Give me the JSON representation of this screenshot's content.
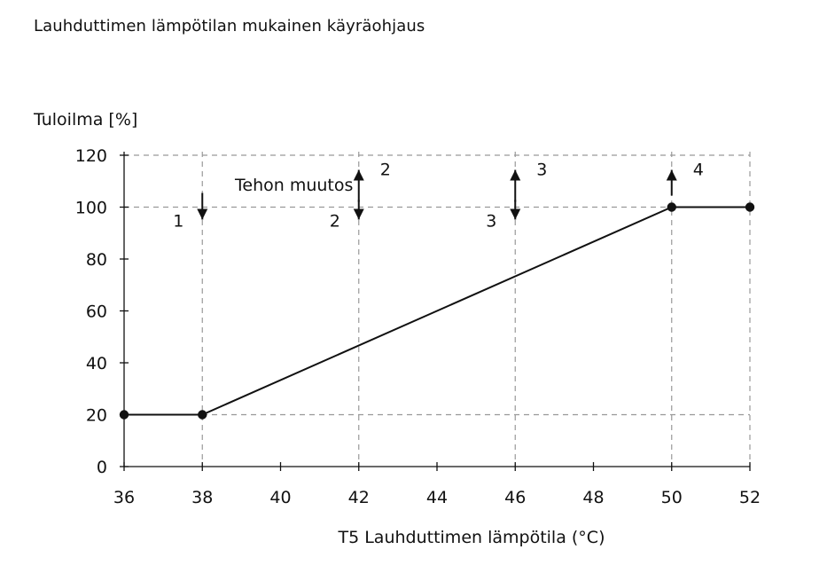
{
  "chart_data": {
    "type": "line",
    "title": "Lauhduttimen lämpötilan mukainen käyräohjaus",
    "xlabel": "T5 Lauhduttimen lämpötila (°C)",
    "ylabel": "Tuloilma [%]",
    "xlim": [
      36,
      52
    ],
    "ylim": [
      0,
      120
    ],
    "xticks": [
      36,
      38,
      40,
      42,
      44,
      46,
      48,
      50,
      52
    ],
    "yticks": [
      0,
      20,
      40,
      60,
      80,
      100,
      120
    ],
    "grid": "dashed",
    "dashed_vlines": [
      38,
      42,
      46,
      50,
      52
    ],
    "dashed_hlines": [
      20,
      100,
      120
    ],
    "series": [
      {
        "x": [
          36,
          38,
          50,
          52
        ],
        "y": [
          20,
          20,
          100,
          100
        ]
      }
    ],
    "annotation_text": "Tehon muutos",
    "markers": [
      {
        "x": 38,
        "up": false,
        "down": true,
        "label_up": "",
        "label_down": "1"
      },
      {
        "x": 42,
        "up": true,
        "down": true,
        "label_up": "2",
        "label_down": "2"
      },
      {
        "x": 46,
        "up": true,
        "down": true,
        "label_up": "3",
        "label_down": "3"
      },
      {
        "x": 50,
        "up": true,
        "down": false,
        "label_up": "4",
        "label_down": ""
      }
    ],
    "colors": {
      "line": "#111111",
      "grid": "#999999",
      "text": "#111111"
    }
  }
}
